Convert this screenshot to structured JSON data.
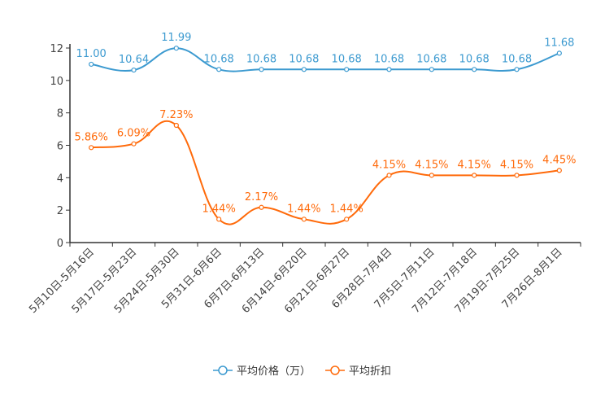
{
  "chart_data": {
    "type": "line",
    "title": "",
    "xlabel": "",
    "ylabel": "",
    "ylim": [
      0,
      12
    ],
    "yticks": [
      0,
      2,
      4,
      6,
      8,
      10,
      12
    ],
    "grid": false,
    "legend_position": "bottom-center",
    "categories": [
      "5月10日-5月16日",
      "5月17日-5月23日",
      "5月24日-5月30日",
      "5月31日-6月6日",
      "6月7日-6月13日",
      "6月14日-6月20日",
      "6月21日-6月27日",
      "6月28日-7月4日",
      "7月5日-7月11日",
      "7月12日-7月18日",
      "7月19日-7月25日",
      "7月26日-8月1日"
    ],
    "series": [
      {
        "name": "平均价格（万）",
        "color": "#3c9ad0",
        "values": [
          11.0,
          10.64,
          11.99,
          10.68,
          10.68,
          10.68,
          10.68,
          10.68,
          10.68,
          10.68,
          10.68,
          11.68
        ],
        "labels": [
          "11.00",
          "10.64",
          "11.99",
          "10.68",
          "10.68",
          "10.68",
          "10.68",
          "10.68",
          "10.68",
          "10.68",
          "10.68",
          "11.68"
        ]
      },
      {
        "name": "平均折扣",
        "color": "#ff6a0a",
        "values": [
          5.86,
          6.09,
          7.23,
          1.44,
          2.17,
          1.44,
          1.44,
          4.15,
          4.15,
          4.15,
          4.15,
          4.45
        ],
        "labels": [
          "5.86%",
          "6.09%",
          "7.23%",
          "1.44%",
          "2.17%",
          "1.44%",
          "1.44%",
          "4.15%",
          "4.15%",
          "4.15%",
          "4.15%",
          "4.45%"
        ]
      }
    ]
  }
}
